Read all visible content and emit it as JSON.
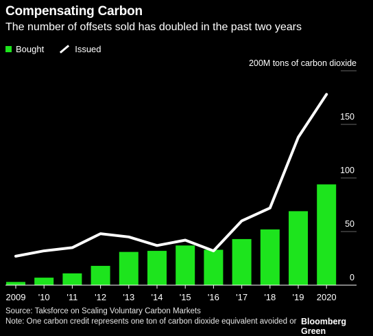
{
  "header": {
    "title": "Compensating Carbon",
    "subtitle": "The number of offsets sold has doubled in the past two years"
  },
  "legend": {
    "bought": "Bought",
    "issued": "Issued"
  },
  "footer": {
    "source": "Source: Taksforce on Scaling Voluntary Carbon Markets",
    "note": "Note: One carbon credit represents one ton of carbon dioxide equivalent avoided or",
    "brand": "Bloomberg Green"
  },
  "colors": {
    "bought": "#1de41d",
    "issued": "#ffffff",
    "background": "#000000",
    "gridline": "#666666"
  },
  "chart_data": {
    "type": "bar",
    "categories": [
      "2009",
      "'10",
      "'11",
      "'12",
      "'13",
      "'14",
      "'15",
      "'16",
      "'17",
      "'18",
      "'19",
      "2020"
    ],
    "series": [
      {
        "name": "Bought",
        "type": "bar",
        "values": [
          3,
          7,
          11,
          18,
          31,
          32,
          37,
          33,
          43,
          52,
          69,
          94
        ]
      },
      {
        "name": "Issued",
        "type": "line",
        "values": [
          27,
          32,
          35,
          48,
          45,
          37,
          42,
          32,
          60,
          72,
          138,
          178
        ]
      }
    ],
    "ylabel": "200M tons of carbon dioxide",
    "ylim": [
      0,
      200
    ],
    "yticks": [
      "0",
      "50",
      "100",
      "150"
    ],
    "ytick_values": [
      0,
      50,
      100,
      150
    ],
    "grid": true
  }
}
